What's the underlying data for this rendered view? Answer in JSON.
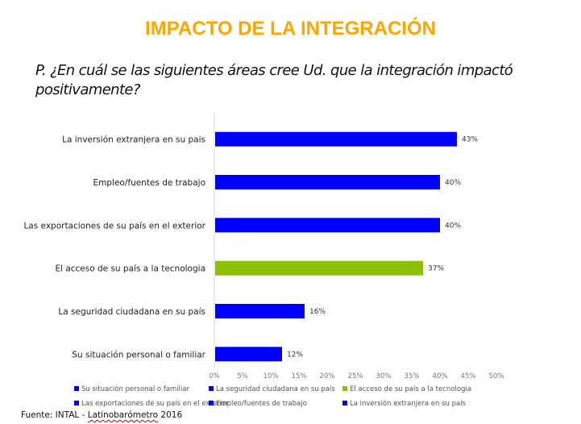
{
  "header": {
    "title": "IMPACTO DE LA INTEGRACIÓN",
    "question": "P. ¿En cuál se las siguientes áreas cree Ud. que la integración impactó positivamente?"
  },
  "colors": {
    "title": "#ffa500",
    "bar_blue": "#0000ff",
    "bar_green": "#8dc000",
    "axis": "#d9d9d9"
  },
  "chart_data": {
    "type": "bar",
    "orientation": "horizontal",
    "title": "IMPACTO DE LA INTEGRACIÓN",
    "xlabel": "",
    "ylabel": "",
    "xlim": [
      0,
      50
    ],
    "categories": [
      "La inversión extranjera en su pais",
      "Empleo/fuentes de trabajo",
      "Las exportaciones de su país en el exterior",
      "El acceso de su país a la tecnologia",
      "La seguridad ciudadana en su país",
      "Su situación personal o familiar"
    ],
    "values": [
      43,
      40,
      40,
      37,
      16,
      12
    ],
    "value_labels": [
      "43%",
      "40%",
      "40%",
      "37%",
      "16%",
      "12%"
    ],
    "bar_colors": [
      "#0000ff",
      "#0000ff",
      "#0000ff",
      "#8dc000",
      "#0000ff",
      "#0000ff"
    ],
    "x_ticks": [
      0,
      5,
      10,
      15,
      20,
      25,
      30,
      35,
      40,
      45,
      50
    ],
    "x_tick_labels": [
      "0%",
      "5%",
      "10%",
      "15%",
      "20%",
      "25%",
      "30%",
      "35%",
      "40%",
      "45%",
      "50%"
    ],
    "grid": false,
    "legend_position": "bottom",
    "legend": [
      {
        "label": "Su situación personal o familiar",
        "color": "#0000ff"
      },
      {
        "label": "La seguridad ciudadana en su país",
        "color": "#0000ff"
      },
      {
        "label": "El acceso de su país a la tecnologia",
        "color": "#8dc000"
      },
      {
        "label": "Las exportaciones de su país en el exterior",
        "color": "#0000ff"
      },
      {
        "label": "Empleo/fuentes de trabajo",
        "color": "#0000ff"
      },
      {
        "label": "La inversión extranjera en su país",
        "color": "#0000ff"
      }
    ]
  },
  "footer": {
    "source_prefix": "Fuente:  INTAL - ",
    "source_underlined": "Latinobarómetro",
    "source_suffix": " 2016"
  }
}
